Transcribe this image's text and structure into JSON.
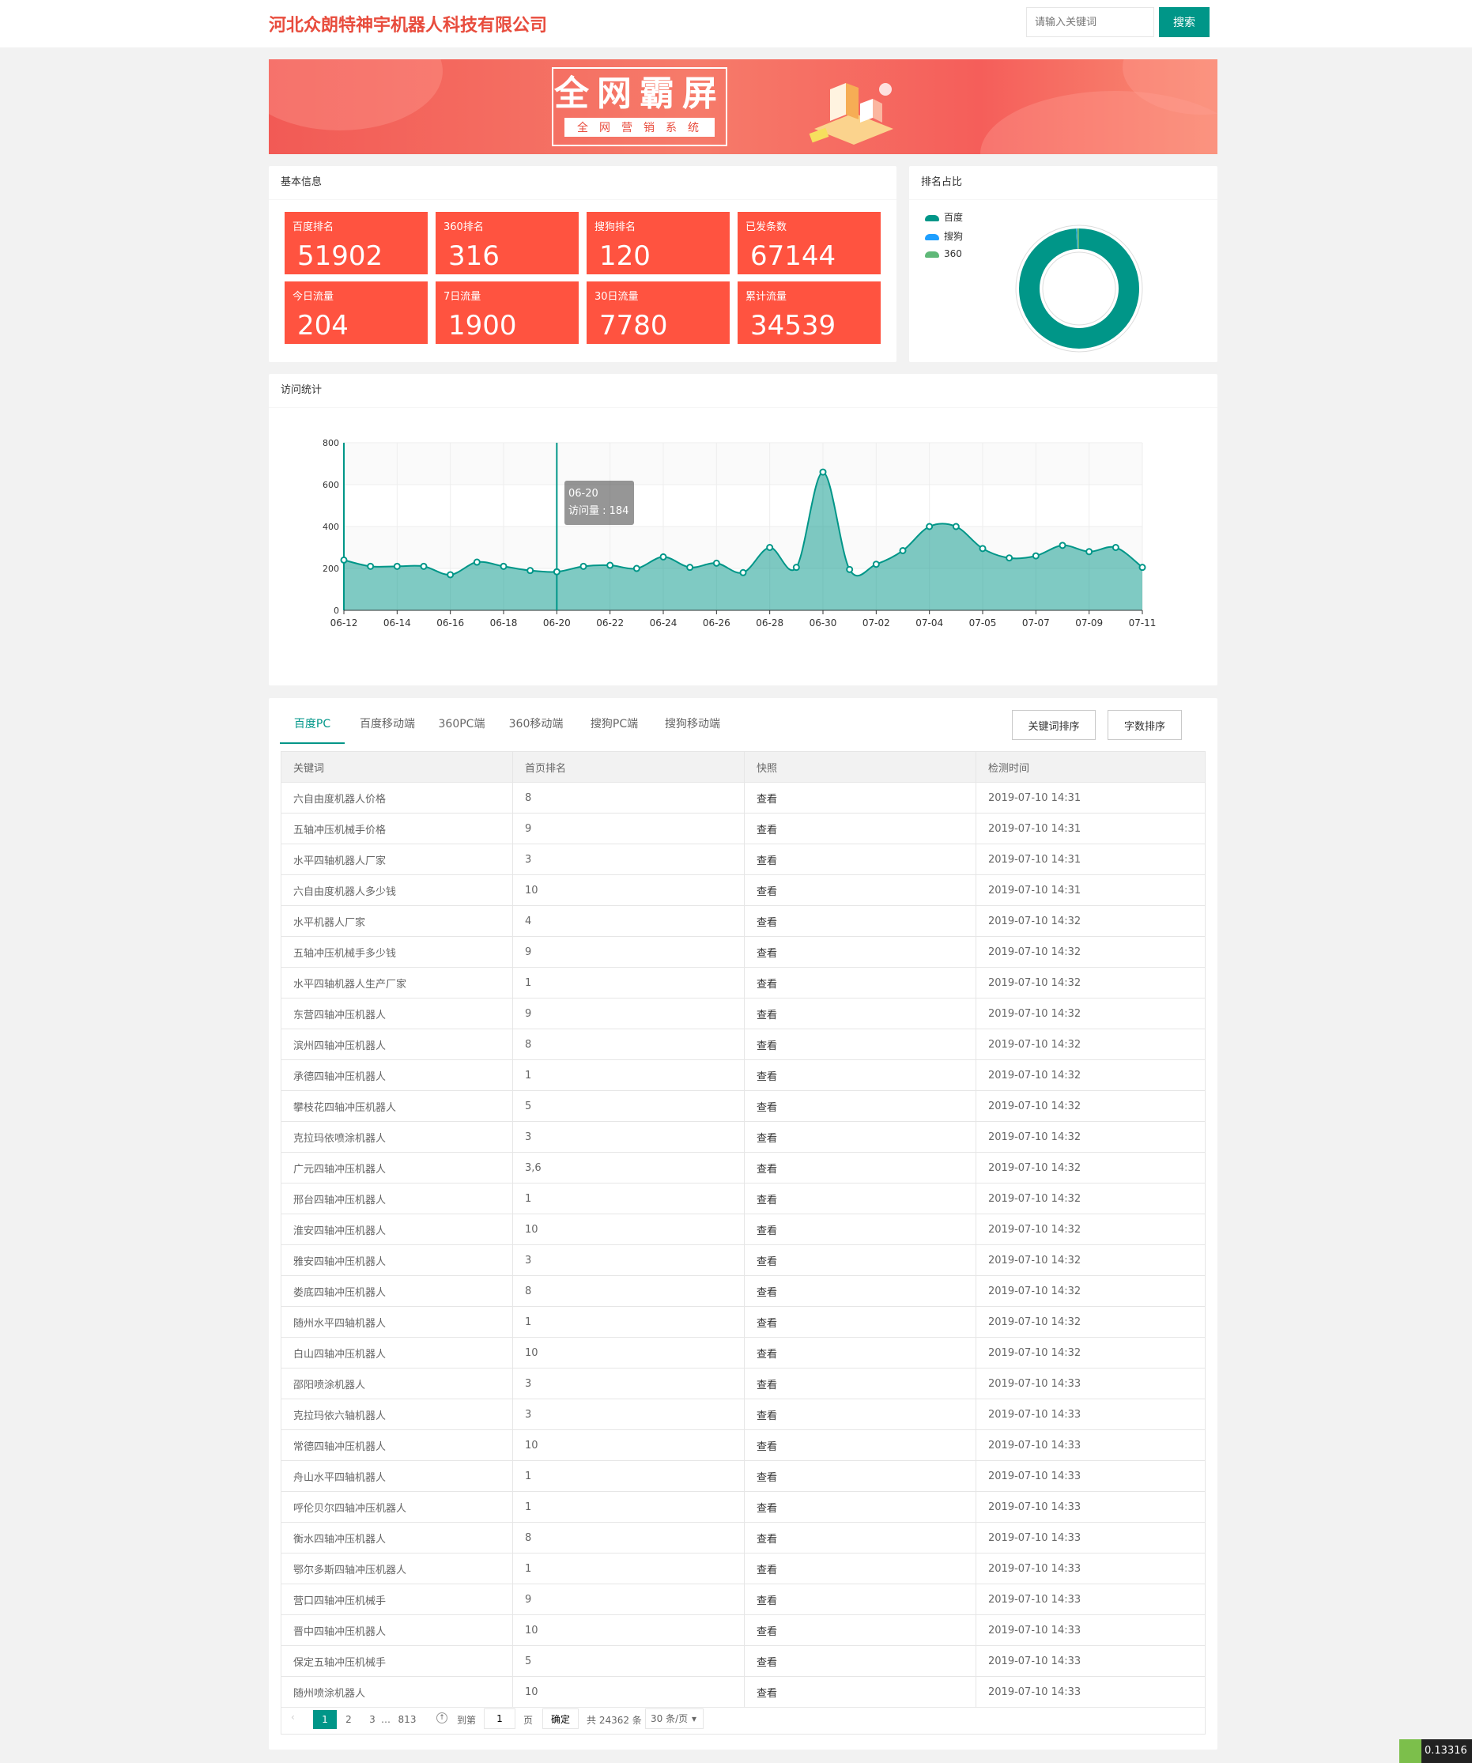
{
  "header": {
    "company": "河北众朗特神宇机器人科技有限公司",
    "search_placeholder": "请输入关键词",
    "search_button": "搜索"
  },
  "banner": {
    "title": "全网霸屏",
    "subtitle": "全网营销系统"
  },
  "basic_info": {
    "title": "基本信息",
    "stats": [
      {
        "label": "百度排名",
        "value": "51902"
      },
      {
        "label": "360排名",
        "value": "316"
      },
      {
        "label": "搜狗排名",
        "value": "120"
      },
      {
        "label": "已发条数",
        "value": "67144"
      },
      {
        "label": "今日流量",
        "value": "204"
      },
      {
        "label": "7日流量",
        "value": "1900"
      },
      {
        "label": "30日流量",
        "value": "7780"
      },
      {
        "label": "累计流量",
        "value": "34539"
      }
    ]
  },
  "ranking_share": {
    "title": "排名占比",
    "legend": [
      {
        "name": "百度",
        "color": "#009688"
      },
      {
        "name": "搜狗",
        "color": "#1e9fff"
      },
      {
        "name": "360",
        "color": "#5fb878"
      }
    ],
    "values": [
      51902,
      120,
      316
    ]
  },
  "visits": {
    "title": "访问统计",
    "tooltip": {
      "date": "06-20",
      "text": "访问量 : 184"
    }
  },
  "chart_data": {
    "type": "area",
    "x": [
      "06-12",
      "06-13",
      "06-14",
      "06-15",
      "06-16",
      "06-17",
      "06-18",
      "06-19",
      "06-20",
      "06-21",
      "06-22",
      "06-23",
      "06-24",
      "06-25",
      "06-26",
      "06-27",
      "06-28",
      "06-29",
      "06-30",
      "07-01",
      "07-02",
      "07-03",
      "07-04",
      "07-04",
      "07-05",
      "07-06",
      "07-07",
      "07-08",
      "07-09",
      "07-10",
      "07-11"
    ],
    "y": [
      240,
      210,
      210,
      210,
      170,
      230,
      210,
      190,
      184,
      210,
      215,
      200,
      255,
      205,
      225,
      180,
      300,
      205,
      660,
      195,
      220,
      285,
      400,
      400,
      295,
      250,
      260,
      310,
      280,
      300,
      205
    ],
    "xtick_labels": [
      "06-12",
      "06-14",
      "06-16",
      "06-18",
      "06-20",
      "06-22",
      "06-24",
      "06-26",
      "06-28",
      "06-30",
      "07-02",
      "07-04",
      "07-05",
      "07-07",
      "07-09",
      "07-11"
    ],
    "ylim": [
      0,
      800
    ],
    "yticks": [
      0,
      200,
      400,
      600,
      800
    ],
    "color": "#009688"
  },
  "tabs": {
    "items": [
      "百度PC",
      "百度移动端",
      "360PC端",
      "360移动端",
      "搜狗PC端",
      "搜狗移动端"
    ],
    "sort_keyword": "关键词排序",
    "sort_chars": "字数排序"
  },
  "table": {
    "headers": [
      "关键词",
      "首页排名",
      "快照",
      "检测时间"
    ],
    "rows": [
      [
        "六自由度机器人价格",
        "8",
        "查看",
        "2019-07-10 14:31"
      ],
      [
        "五轴冲压机械手价格",
        "9",
        "查看",
        "2019-07-10 14:31"
      ],
      [
        "水平四轴机器人厂家",
        "3",
        "查看",
        "2019-07-10 14:31"
      ],
      [
        "六自由度机器人多少钱",
        "10",
        "查看",
        "2019-07-10 14:31"
      ],
      [
        "水平机器人厂家",
        "4",
        "查看",
        "2019-07-10 14:32"
      ],
      [
        "五轴冲压机械手多少钱",
        "9",
        "查看",
        "2019-07-10 14:32"
      ],
      [
        "水平四轴机器人生产厂家",
        "1",
        "查看",
        "2019-07-10 14:32"
      ],
      [
        "东营四轴冲压机器人",
        "9",
        "查看",
        "2019-07-10 14:32"
      ],
      [
        "滨州四轴冲压机器人",
        "8",
        "查看",
        "2019-07-10 14:32"
      ],
      [
        "承德四轴冲压机器人",
        "1",
        "查看",
        "2019-07-10 14:32"
      ],
      [
        "攀枝花四轴冲压机器人",
        "5",
        "查看",
        "2019-07-10 14:32"
      ],
      [
        "克拉玛依喷涂机器人",
        "3",
        "查看",
        "2019-07-10 14:32"
      ],
      [
        "广元四轴冲压机器人",
        "3,6",
        "查看",
        "2019-07-10 14:32"
      ],
      [
        "邢台四轴冲压机器人",
        "1",
        "查看",
        "2019-07-10 14:32"
      ],
      [
        "淮安四轴冲压机器人",
        "10",
        "查看",
        "2019-07-10 14:32"
      ],
      [
        "雅安四轴冲压机器人",
        "3",
        "查看",
        "2019-07-10 14:32"
      ],
      [
        "娄底四轴冲压机器人",
        "8",
        "查看",
        "2019-07-10 14:32"
      ],
      [
        "随州水平四轴机器人",
        "1",
        "查看",
        "2019-07-10 14:32"
      ],
      [
        "白山四轴冲压机器人",
        "10",
        "查看",
        "2019-07-10 14:32"
      ],
      [
        "邵阳喷涂机器人",
        "3",
        "查看",
        "2019-07-10 14:33"
      ],
      [
        "克拉玛依六轴机器人",
        "3",
        "查看",
        "2019-07-10 14:33"
      ],
      [
        "常德四轴冲压机器人",
        "10",
        "查看",
        "2019-07-10 14:33"
      ],
      [
        "舟山水平四轴机器人",
        "1",
        "查看",
        "2019-07-10 14:33"
      ],
      [
        "呼伦贝尔四轴冲压机器人",
        "1",
        "查看",
        "2019-07-10 14:33"
      ],
      [
        "衡水四轴冲压机器人",
        "8",
        "查看",
        "2019-07-10 14:33"
      ],
      [
        "鄂尔多斯四轴冲压机器人",
        "1",
        "查看",
        "2019-07-10 14:33"
      ],
      [
        "营口四轴冲压机械手",
        "9",
        "查看",
        "2019-07-10 14:33"
      ],
      [
        "晋中四轴冲压机器人",
        "10",
        "查看",
        "2019-07-10 14:33"
      ],
      [
        "保定五轴冲压机械手",
        "5",
        "查看",
        "2019-07-10 14:33"
      ],
      [
        "随州喷涂机器人",
        "10",
        "查看",
        "2019-07-10 14:33"
      ]
    ]
  },
  "pagination": {
    "pages": [
      "1",
      "2",
      "3",
      "…",
      "813"
    ],
    "goto_label": "到第",
    "goto_value": "1",
    "page_unit": "页",
    "confirm": "确定",
    "total": "共 24362 条",
    "per_page": "30 条/页"
  },
  "corner_badge": "0.13316"
}
